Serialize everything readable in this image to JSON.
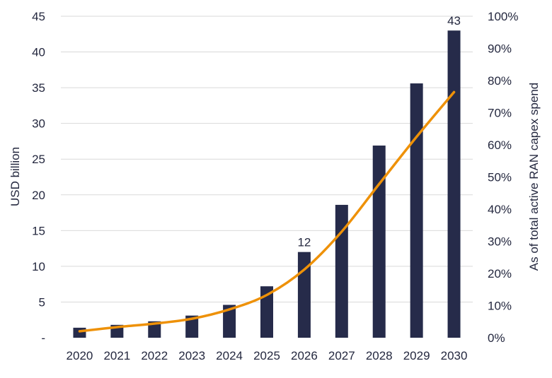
{
  "chart_data": {
    "type": "bar",
    "categories": [
      "2020",
      "2021",
      "2022",
      "2023",
      "2024",
      "2025",
      "2026",
      "2027",
      "2028",
      "2029",
      "2030"
    ],
    "series": [
      {
        "type": "bar",
        "axis": "left",
        "values": [
          1.4,
          1.8,
          2.3,
          3.1,
          4.6,
          7.2,
          12,
          18.6,
          26.9,
          35.6,
          43
        ],
        "data_labels": [
          "",
          "",
          "",
          "",
          "",
          "",
          "12",
          "",
          "",
          "",
          "43"
        ]
      },
      {
        "type": "line",
        "axis": "right",
        "values": [
          2,
          3.3,
          4.4,
          5.9,
          8.8,
          13.3,
          21.2,
          33,
          47.8,
          62.5,
          76.4
        ]
      }
    ],
    "ylabel": "USD billion",
    "y2label": "As of total active RAN capex spend",
    "ylim": [
      0,
      45
    ],
    "y2lim": [
      0,
      100
    ],
    "yticks": [
      "-",
      "5",
      "10",
      "15",
      "20",
      "25",
      "30",
      "35",
      "40",
      "45"
    ],
    "y2ticks": [
      "0%",
      "10%",
      "20%",
      "30%",
      "40%",
      "50%",
      "60%",
      "70%",
      "80%",
      "90%",
      "100%"
    ],
    "grid": true,
    "colors": {
      "bar": "#262b4a",
      "line": "#ee9108",
      "text": "#24283f",
      "grid": "#d9d9d9"
    }
  }
}
